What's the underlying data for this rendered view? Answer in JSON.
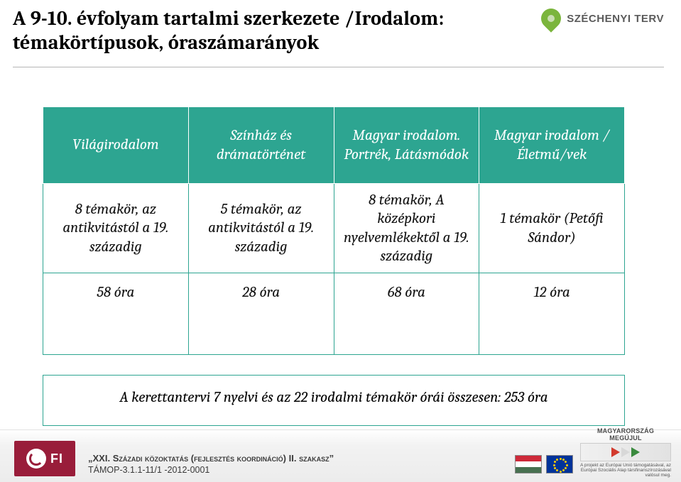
{
  "title": "A 9-10. évfolyam tartalmi szerkezete /Irodalom: témakörtípusok, óraszámarányok",
  "top_logo_text": "SZÉCHENYI TERV",
  "colors": {
    "accent": "#2da591",
    "header_text": "#ffffff",
    "body_text": "#111111",
    "ofi_bg": "#991d3a",
    "pin": "#7bb53c"
  },
  "table": {
    "headers": [
      "Világirodalom",
      "Színház és drámatörténet",
      "Magyar irodalom. Portrék, Látásmódok",
      "Magyar irodalom / Életmű/vek"
    ],
    "row1": [
      "8 témakör, az antikvitástól a 19. századig",
      "5 témakör, az antikvitástól a 19. századig",
      "8 témakör, A középkori nyelvemlékektől a 19. századig",
      "1 témakör (Petőfi Sándor)"
    ],
    "row2": [
      "58 óra",
      "28 óra",
      "68 óra",
      "12 óra"
    ]
  },
  "summary": "A kerettantervi 7 nyelvi és az 22 irodalmi témakör órái összesen: 253 óra",
  "footer": {
    "ofi": "FI",
    "project_line1_a": "„XXI. ",
    "project_line1_b": "Századi közoktatás (fejlesztés koordináció) II. szakasz",
    "project_line1_c": "”",
    "project_line2": "TÁMOP-3.1.1-11/1 -2012-0001",
    "mm_title": "MAGYARORSZÁG MEGÚJUL",
    "mm_sub": "A projekt az Európai Unió támogatásával, az Európai Szociális Alap társfinanszírozásával valósul meg.",
    "flag_hu": [
      "#ce2939",
      "#ffffff",
      "#477050"
    ],
    "flag_eu_bg": "#003399",
    "arrows": [
      "#d23a2e",
      "#d8d8d8",
      "#3a8a3e"
    ]
  }
}
